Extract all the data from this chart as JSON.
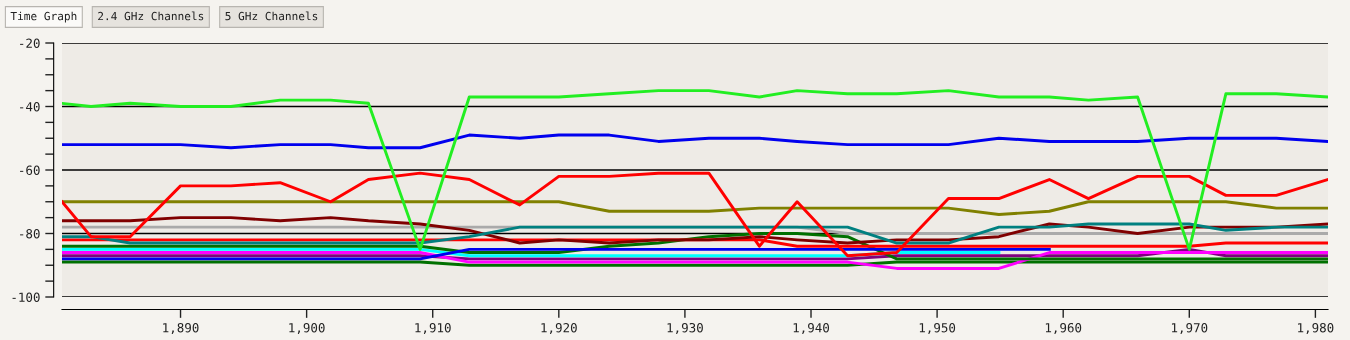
{
  "chart_data": {
    "type": "line",
    "annotations": [
      "Time Graph",
      "2.4 GHz Channels",
      "5 GHz Channels"
    ],
    "x": [
      1880.6,
      1882.9,
      1886.0,
      1890,
      1894,
      1897.9,
      1901.9,
      1904.9,
      1909,
      1912.9,
      1916.9,
      1920,
      1924,
      1927.9,
      1931.9,
      1935.9,
      1938.9,
      1942.9,
      1946.8,
      1950.9,
      1954.9,
      1958.9,
      1962,
      1965.9,
      1970,
      1972.9,
      1976.9,
      1981
    ],
    "xlim": [
      1880.6,
      1981
    ],
    "xticks": [
      {
        "value": 1890,
        "label": "1,890"
      },
      {
        "value": 1900,
        "label": "1,900"
      },
      {
        "value": 1910,
        "label": "1,910"
      },
      {
        "value": 1920,
        "label": "1,920"
      },
      {
        "value": 1930,
        "label": "1,930"
      },
      {
        "value": 1940,
        "label": "1,940"
      },
      {
        "value": 1950,
        "label": "1,950"
      },
      {
        "value": 1960,
        "label": "1,960"
      },
      {
        "value": 1970,
        "label": "1,970"
      },
      {
        "value": 1980,
        "label": "1,980"
      }
    ],
    "ylim": [
      -100,
      -20
    ],
    "yticks": [
      -100,
      {
        "value": -95,
        "label": null
      },
      {
        "value": -90,
        "label": null
      },
      {
        "value": -85,
        "label": null
      },
      -80,
      {
        "value": -75,
        "label": null
      },
      {
        "value": -70,
        "label": null
      },
      {
        "value": -65,
        "label": null
      },
      -60,
      {
        "value": -55,
        "label": null
      },
      {
        "value": -50,
        "label": null
      },
      {
        "value": -45,
        "label": null
      },
      -40,
      {
        "value": -35,
        "label": null
      },
      {
        "value": -30,
        "label": null
      },
      {
        "value": -25,
        "label": null
      },
      -20
    ],
    "grid": "y",
    "line_style": "solid",
    "marker": "none",
    "series": [
      {
        "color": "#aaaaaa",
        "values": [
          -78,
          -78,
          -78,
          -78,
          -78,
          -78,
          -78,
          -78,
          -78,
          -78,
          -78,
          -78,
          -78,
          -78,
          -78,
          -78,
          -78,
          -80,
          -80,
          -80,
          -80,
          -80,
          -80,
          -80,
          -80,
          -80,
          -80,
          -80
        ]
      },
      {
        "color": "#007000",
        "values": [
          -89,
          -89,
          -89,
          -89,
          -89,
          -89,
          -89,
          -89,
          -89,
          -90,
          -90,
          -90,
          -90,
          -90,
          -90,
          -90,
          -90,
          -90,
          -89,
          -89,
          -89,
          -89,
          -89,
          -89,
          -89,
          -89,
          -89,
          -89
        ]
      },
      {
        "color": "#800080",
        "values": [
          -87,
          -87,
          -87,
          -87,
          -87,
          -87,
          -87,
          -87,
          -87,
          -88,
          -88,
          -88,
          -88,
          -88,
          -88,
          -88,
          -88,
          -88,
          -87,
          -87,
          -87,
          -87,
          -87,
          -87,
          -85,
          -87,
          -87,
          -87
        ]
      },
      {
        "color": "#ff00ff",
        "values": [
          -86,
          -86,
          -86,
          -86,
          -86,
          -86,
          -86,
          -86,
          -86,
          -89,
          -89,
          -89,
          -89,
          -89,
          -89,
          -89,
          -89,
          -89,
          -91,
          -91,
          -91,
          -86,
          -86,
          -86,
          -86,
          -86,
          -86,
          -86
        ]
      },
      {
        "color": "#00ffff",
        "values": [
          -85,
          -85,
          -85,
          -85,
          -85,
          -85,
          -85,
          -85,
          -85,
          -87,
          -87,
          -87,
          -87,
          -87,
          -87,
          -87,
          -87,
          -87,
          -86,
          -86,
          -86,
          null,
          null,
          null,
          null,
          null,
          null,
          null
        ]
      },
      {
        "color": "#007000",
        "values": [
          -84,
          -84,
          -84,
          -84,
          -84,
          -84,
          -84,
          -84,
          -84,
          -86,
          -86,
          -86,
          -84,
          -83,
          -81,
          -80,
          -80,
          -81,
          -88,
          -88,
          -88,
          -88,
          -88,
          -88,
          -88,
          -88,
          -88,
          -88
        ]
      },
      {
        "color": "#0000ee",
        "values": [
          -88,
          -88,
          -88,
          -88,
          -88,
          -88,
          -88,
          -88,
          -88,
          -85,
          -85,
          -85,
          -85,
          -85,
          -85,
          -85,
          -85,
          -85,
          -85,
          -85,
          -85,
          -85,
          null,
          null,
          null,
          null,
          null,
          null
        ]
      },
      {
        "color": "#ff0000",
        "values": [
          -82,
          -82,
          -82,
          -82,
          -82,
          -82,
          -82,
          -82,
          -82,
          -82,
          -82,
          -82,
          -82,
          -82,
          -82,
          -82,
          -84,
          -84,
          -84,
          -84,
          -84,
          -84,
          -84,
          -84,
          -84,
          -83,
          -83,
          -83
        ]
      },
      {
        "color": "#800000",
        "values": [
          -76,
          -76,
          -76,
          -75,
          -75,
          -76,
          -75,
          -76,
          -77,
          -79,
          -83,
          -82,
          -83,
          -82,
          -82,
          -81,
          -82,
          -83,
          -82,
          -82,
          -81,
          -77,
          -78,
          -80,
          -78,
          -78,
          -78,
          -77
        ]
      },
      {
        "color": "#008080",
        "values": [
          -81,
          -81,
          -83,
          -83,
          -83,
          -83,
          -83,
          -83,
          -83,
          -81,
          -78,
          -78,
          -78,
          -78,
          -78,
          -78,
          -78,
          -78,
          -83,
          -83,
          -78,
          -78,
          -77,
          -77,
          -77,
          -79,
          -78,
          -78
        ]
      },
      {
        "color": "#808000",
        "values": [
          -70,
          -70,
          -70,
          -70,
          -70,
          -70,
          -70,
          -70,
          -70,
          -70,
          -70,
          -70,
          -73,
          -73,
          -73,
          -72,
          -72,
          -72,
          -72,
          -72,
          -74,
          -73,
          -70,
          -70,
          -70,
          -70,
          -72,
          -72
        ]
      },
      {
        "color": "#ff0000",
        "values": [
          -70,
          -81,
          -81,
          -65,
          -65,
          -64,
          -70,
          -63,
          -61,
          -63,
          -71,
          -62,
          -62,
          -61,
          -61,
          -84,
          -70,
          -87,
          -86,
          -69,
          -69,
          -63,
          -69,
          -62,
          -62,
          -68,
          -68,
          -63
        ]
      },
      {
        "color": "#0000ee",
        "values": [
          -52,
          -52,
          -52,
          -52,
          -53,
          -52,
          -52,
          -53,
          -53,
          -49,
          -50,
          -49,
          -49,
          -51,
          -50,
          -50,
          -51,
          -52,
          -52,
          -52,
          -50,
          -51,
          -51,
          -51,
          -50,
          -50,
          -50,
          -51
        ]
      },
      {
        "color": "#22ee22",
        "values": [
          -39,
          -40,
          -39,
          -40,
          -40,
          -38,
          -38,
          -39,
          -85,
          -37,
          -37,
          -37,
          -36,
          -35,
          -35,
          -37,
          -35,
          -36,
          -36,
          -35,
          -37,
          -37,
          -38,
          -37,
          -85,
          -36,
          -36,
          -37
        ]
      }
    ]
  }
}
